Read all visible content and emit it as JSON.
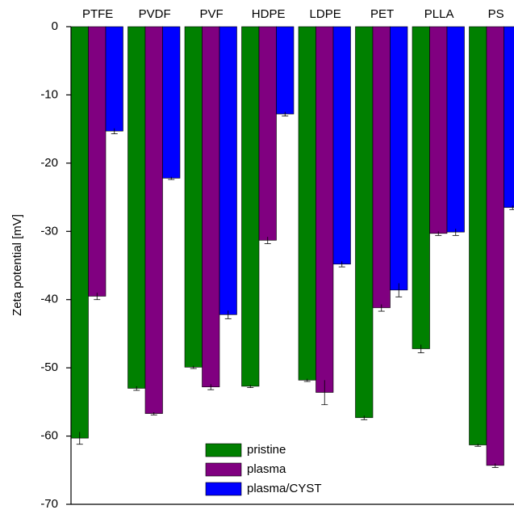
{
  "chart_data": {
    "type": "bar",
    "y_label": "Zeta potential [mV]",
    "categories": [
      "PTFE",
      "PVDF",
      "PVF",
      "HDPE",
      "LDPE",
      "PET",
      "PLLA",
      "PS"
    ],
    "series": [
      {
        "name": "pristine",
        "color": "#008000",
        "values": [
          -60.3,
          -53.0,
          -49.9,
          -52.7,
          -51.8,
          -57.3,
          -47.2,
          -61.3
        ],
        "errors": [
          0.9,
          0.3,
          0.2,
          0.2,
          0.2,
          0.3,
          0.6,
          0.2
        ]
      },
      {
        "name": "plasma",
        "color": "#800080",
        "values": [
          -39.5,
          -56.7,
          -52.8,
          -31.3,
          -53.6,
          -41.2,
          -30.3,
          -64.3
        ],
        "errors": [
          0.5,
          0.2,
          0.4,
          0.5,
          1.8,
          0.5,
          0.3,
          0.3
        ]
      },
      {
        "name": "plasma/CYST",
        "color": "#0000ff",
        "values": [
          -15.3,
          -22.2,
          -42.2,
          -12.8,
          -34.8,
          -38.6,
          -30.1,
          -26.5
        ],
        "errors": [
          0.4,
          0.2,
          0.6,
          0.3,
          0.4,
          1.0,
          0.5,
          0.3
        ]
      }
    ],
    "ylim": [
      -70,
      0
    ],
    "yticks": [
      0,
      -10,
      -20,
      -30,
      -40,
      -50,
      -60,
      -70
    ],
    "legend": "bottom-center"
  }
}
